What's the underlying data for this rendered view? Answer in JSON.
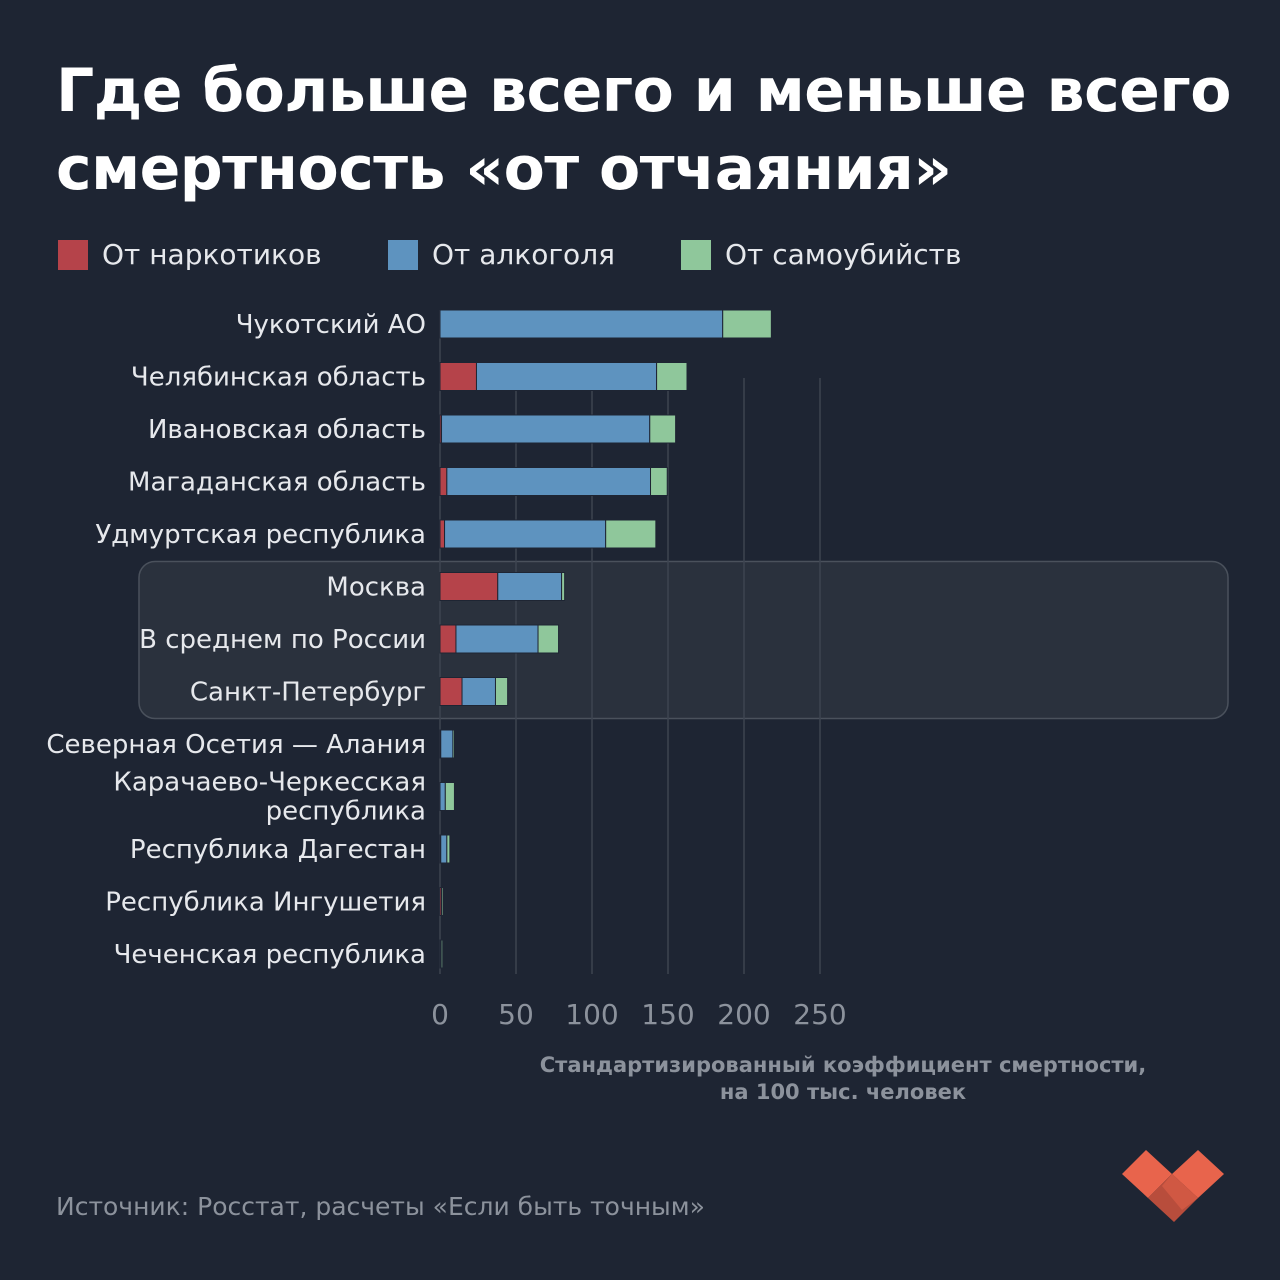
{
  "title_line1": "Где больше всего и меньше всего",
  "title_line2": "смертность «от отчаяния»",
  "legend": [
    {
      "label": "От наркотиков",
      "color": "#b5434a"
    },
    {
      "label": "От алкоголя",
      "color": "#5e93bf"
    },
    {
      "label": "От самоубийств",
      "color": "#8fc79b"
    }
  ],
  "source": "Источник: Росстат, расчеты «Если быть точным»",
  "chart_data": {
    "type": "bar",
    "orientation": "horizontal",
    "stacked": true,
    "categories": [
      [
        "Чукотский АО"
      ],
      [
        "Челябинская область"
      ],
      [
        "Ивановская область"
      ],
      [
        "Магаданская область"
      ],
      [
        "Удмуртская республика"
      ],
      [
        "Москва"
      ],
      [
        "В среднем по России"
      ],
      [
        "Санкт-Петербург"
      ],
      [
        "Северная Осетия — Алания"
      ],
      [
        "Карачаево-Черкесская",
        "республика"
      ],
      [
        "Республика Дагестан"
      ],
      [
        "Республика Ингушетия"
      ],
      [
        "Чеченская республика"
      ]
    ],
    "series": [
      {
        "name": "От наркотиков",
        "color": "#b5434a",
        "values": [
          0,
          24,
          1,
          4.5,
          3,
          38,
          10.5,
          14.5,
          0.5,
          0,
          0.5,
          1,
          0.3
        ]
      },
      {
        "name": "От алкоголя",
        "color": "#5e93bf",
        "values": [
          186,
          118.5,
          137,
          134,
          106,
          42,
          54,
          22,
          8,
          3.5,
          4,
          0,
          0.5
        ]
      },
      {
        "name": "От самоубийств",
        "color": "#8fc79b",
        "values": [
          32,
          20,
          17,
          11,
          33,
          2,
          13.5,
          8,
          1,
          6,
          2,
          0.3,
          0.3
        ]
      }
    ],
    "highlighted": [
      "Москва",
      "В среднем по России",
      "Санкт-Петербург"
    ],
    "xlim": [
      0,
      250
    ],
    "xticks": [
      "0",
      "50",
      "100",
      "150",
      "200",
      "250"
    ],
    "xlabel": [
      "Стандартизированный коэффициент смертности,",
      "на 100 тыс. человек"
    ],
    "grid": true
  }
}
